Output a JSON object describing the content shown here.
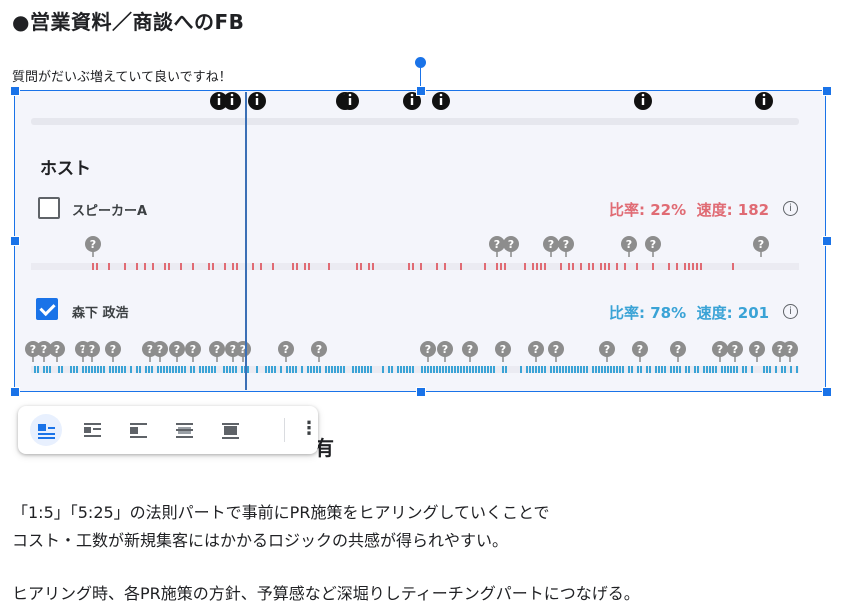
{
  "document": {
    "heading": "●営業資料／商談へのFB",
    "comment": "質問がだいぶ増えていて良いですね！",
    "heading_2_visible_tail": "有",
    "paragraphs": [
      "「1:5」「5:25」の法則パートで事前にPR施策をヒアリングしていくことで",
      "コスト・工数が新規集客にはかかるロジックの共感が得られやすい。",
      "ヒアリング時、各PR施策の方針、予算感など深堀りしティーチングパートにつなげる。"
    ]
  },
  "timeline": {
    "section_label": "ホスト",
    "info_glyph": "i",
    "speakers": [
      {
        "name": "スピーカーA",
        "checked": false,
        "ratio_text": "比率: 22%",
        "speed_text": "速度: 182",
        "color": "#e06b74"
      },
      {
        "name": "森下 政浩",
        "checked": true,
        "ratio_text": "比率: 78%",
        "speed_text": "速度: 201",
        "color": "#3aa3d6"
      }
    ],
    "playhead_fraction": 0.28
  },
  "toolbar": {
    "buttons": [
      {
        "icon": "inline-icon",
        "selected": true
      },
      {
        "icon": "wrap-text-icon",
        "selected": false
      },
      {
        "icon": "break-text-icon",
        "selected": false
      },
      {
        "icon": "behind-text-icon",
        "selected": false
      },
      {
        "icon": "in-front-of-text-icon",
        "selected": false
      }
    ],
    "more_glyph": "⋮"
  },
  "colors": {
    "selection": "#1a73e8",
    "speaker_a": "#e06b74",
    "speaker_b": "#3aa3d6",
    "panel_bg": "#f4f5fb"
  }
}
